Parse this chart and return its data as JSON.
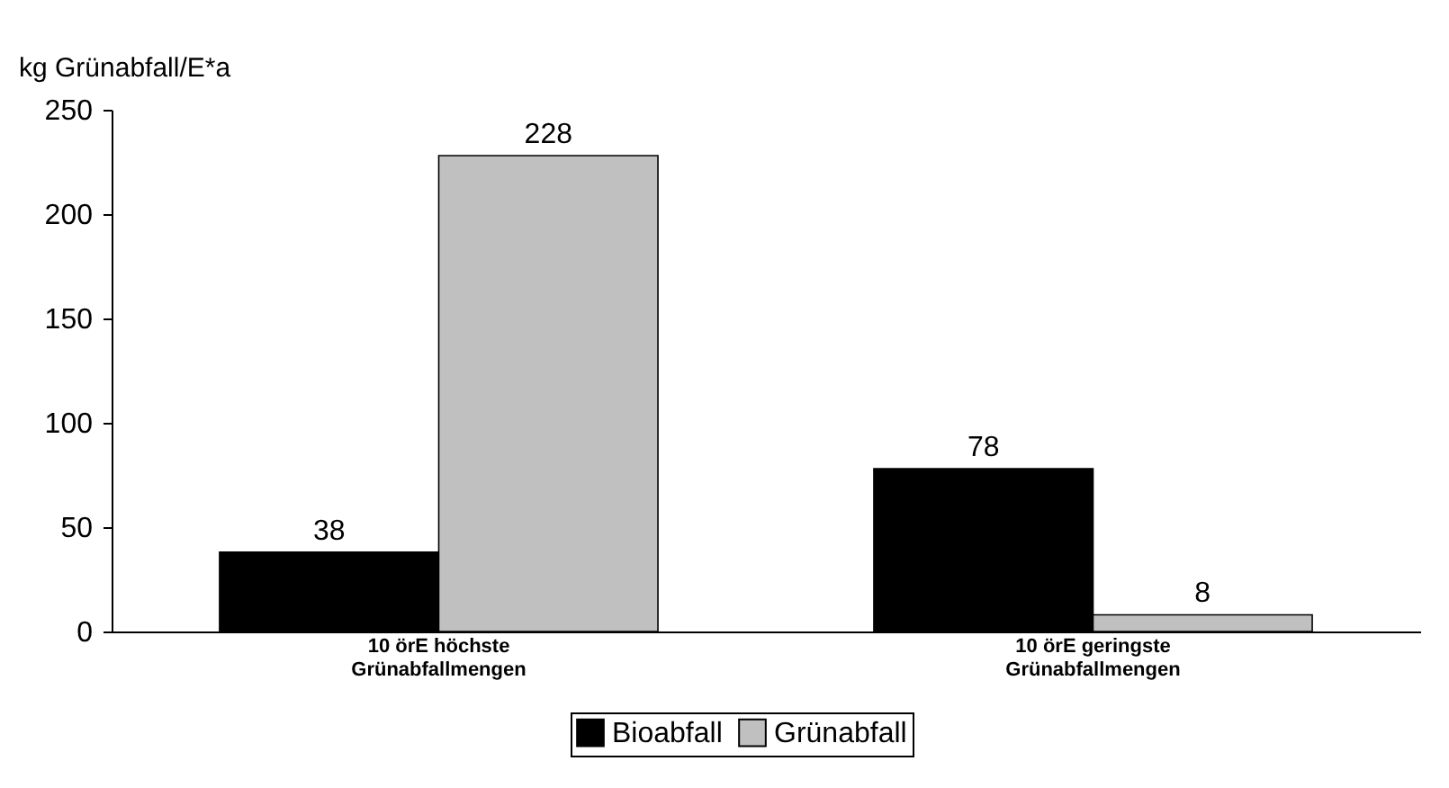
{
  "chart_data": {
    "type": "bar",
    "ylabel": "kg Grünabfall/E*a",
    "categories": [
      "10 örE höchste\nGrünabfallmengen",
      "10 örE geringste\nGrünabfallmengen"
    ],
    "series": [
      {
        "name": "Bioabfall",
        "color": "#000000",
        "values": [
          38,
          78
        ]
      },
      {
        "name": "Grünabfall",
        "color": "#c0c0c0",
        "values": [
          228,
          8
        ]
      }
    ],
    "ylim": [
      0,
      250
    ],
    "yticks": [
      0,
      50,
      100,
      150,
      200,
      250
    ],
    "data_labels": true,
    "grid": false,
    "legend": "bottom"
  }
}
